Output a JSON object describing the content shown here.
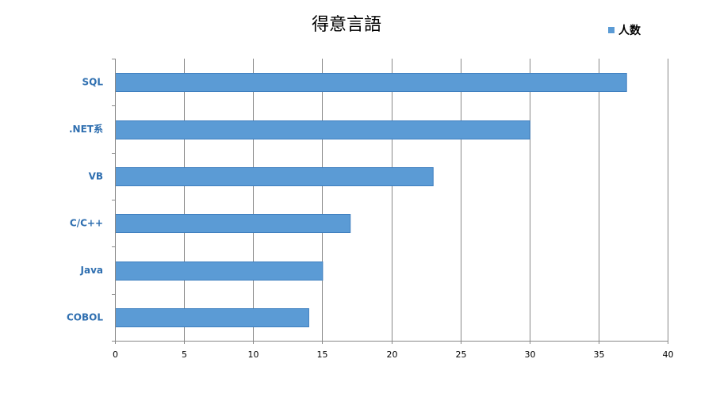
{
  "chart_data": {
    "type": "bar",
    "orientation": "horizontal",
    "title": "得意言語",
    "categories": [
      "SQL",
      ".NET系",
      "VB",
      "C/C++",
      "Java",
      "COBOL"
    ],
    "series": [
      {
        "name": "人数",
        "values": [
          37,
          30,
          23,
          17,
          15,
          14
        ]
      }
    ],
    "xlabel": "",
    "ylabel": "",
    "xlim": [
      0,
      40
    ],
    "x_ticks": [
      "0",
      "5",
      "10",
      "15",
      "20",
      "25",
      "30",
      "35",
      "40"
    ],
    "grid": true,
    "legend_position": "top-right",
    "colors": {
      "bar": "#5b9bd5",
      "bar_edge": "#3f7fbf",
      "category_label": "#2f6fb0",
      "grid": "#888888",
      "axis": "#888888"
    }
  }
}
